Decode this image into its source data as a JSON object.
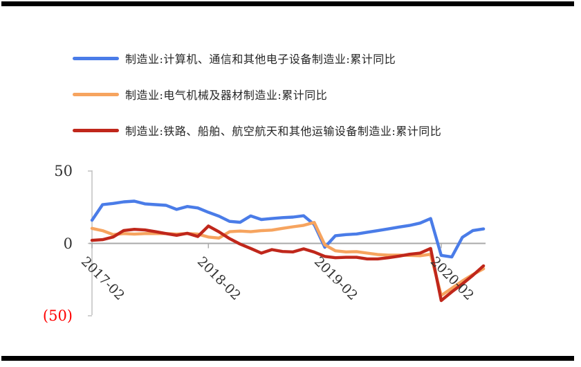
{
  "chart_data": {
    "type": "line",
    "title": "",
    "legend_position": "top-left",
    "grid": "zero-line-only",
    "x": [
      "2017-02",
      "2017-03",
      "2017-04",
      "2017-05",
      "2017-06",
      "2017-07",
      "2017-08",
      "2017-09",
      "2017-10",
      "2017-11",
      "2017-12",
      "2018-02",
      "2018-03",
      "2018-04",
      "2018-05",
      "2018-06",
      "2018-07",
      "2018-08",
      "2018-09",
      "2018-10",
      "2018-11",
      "2018-12",
      "2019-02",
      "2019-03",
      "2019-04",
      "2019-05",
      "2019-06",
      "2019-07",
      "2019-08",
      "2019-09",
      "2019-10",
      "2019-11",
      "2019-12",
      "2020-02",
      "2020-03",
      "2020-04",
      "2020-05",
      "2020-06"
    ],
    "x_axis_ticks": [
      "2017-02",
      "2018-02",
      "2019-02",
      "2020-02"
    ],
    "y_axis": {
      "range": [
        -50,
        50
      ],
      "ticks": [
        {
          "label": "50",
          "value": 50,
          "color": "#333333"
        },
        {
          "label": "0",
          "value": 0,
          "color": "#333333"
        },
        {
          "label": "(50)",
          "value": -50,
          "color": "#FF0000"
        }
      ]
    },
    "series": [
      {
        "name": "制造业:计算机、通信和其他电子设备制造业:累计同比",
        "color": "#4A7CE8",
        "values": [
          16.0,
          26.8,
          27.6,
          28.7,
          29.2,
          27.3,
          26.8,
          26.3,
          23.5,
          25.5,
          24.5,
          21.5,
          18.8,
          15.2,
          14.6,
          19.0,
          16.5,
          17.2,
          17.8,
          18.2,
          19.1,
          13.0,
          -2.7,
          5.3,
          6.1,
          6.5,
          7.7,
          8.8,
          10.0,
          11.3,
          12.4,
          14.0,
          17.2,
          -8.3,
          -9.4,
          4.2,
          8.9,
          10.0
        ]
      },
      {
        "name": "制造业:电气机械及器材制造业:累计同比",
        "color": "#F6A45F",
        "values": [
          10.4,
          8.8,
          6.1,
          6.8,
          6.4,
          6.8,
          6.8,
          6.8,
          6.4,
          6.8,
          6.4,
          4.4,
          3.7,
          8.1,
          8.5,
          8.1,
          8.8,
          9.2,
          10.4,
          11.5,
          12.5,
          14.5,
          -1.0,
          -5.1,
          -5.9,
          -5.7,
          -6.7,
          -7.7,
          -8.1,
          -8.1,
          -8.3,
          -8.5,
          -7.5,
          -36.0,
          -31.0,
          -26.0,
          -21.5,
          -17.5
        ]
      },
      {
        "name": "制造业:铁路、船舶、航空航天和其他运输设备制造业:累计同比",
        "color": "#C0271B",
        "values": [
          2.1,
          2.6,
          4.4,
          8.9,
          9.7,
          9.3,
          8.1,
          6.8,
          5.6,
          7.0,
          4.8,
          12.0,
          8.0,
          3.3,
          -0.5,
          -3.5,
          -6.7,
          -4.3,
          -5.6,
          -5.9,
          -3.8,
          -6.0,
          -9.0,
          -9.9,
          -9.6,
          -9.6,
          -10.7,
          -10.7,
          -9.9,
          -8.8,
          -7.5,
          -6.7,
          -3.5,
          -39.5,
          -33.5,
          -28.0,
          -22.0,
          -15.5
        ]
      }
    ],
    "styles": {
      "axis_line_color": "#C0C0C0",
      "zero_line_color": "#A9A9A9",
      "tick_color": "#ABABAB"
    }
  }
}
